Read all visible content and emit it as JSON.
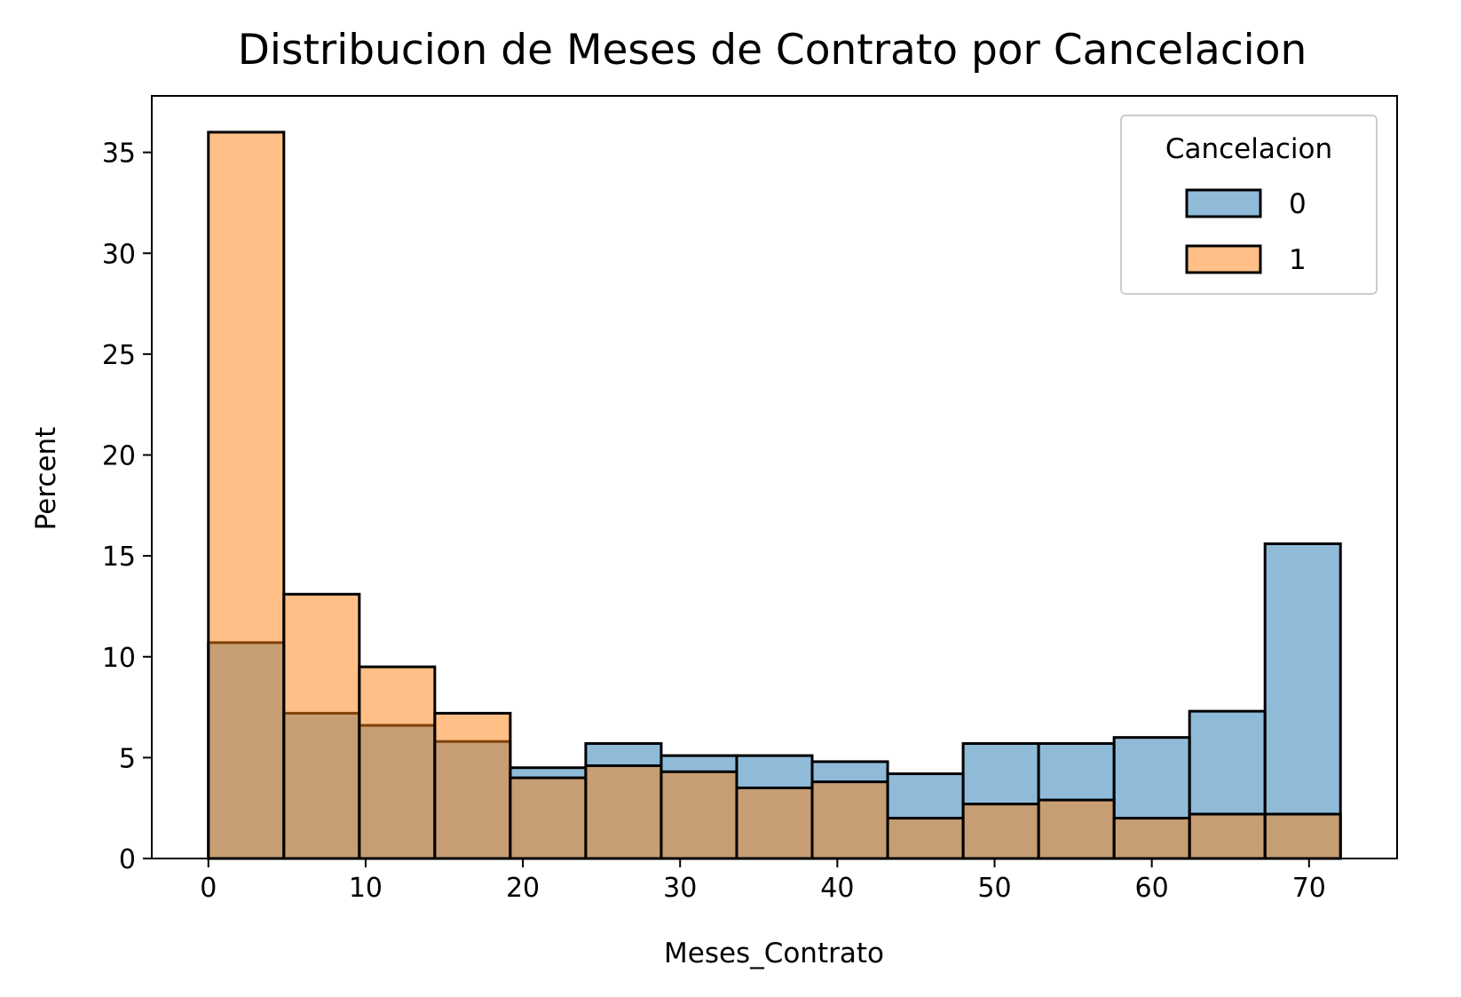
{
  "chart_data": {
    "type": "histogram",
    "title": "Distribucion de Meses de Contrato por Cancelacion",
    "xlabel": "Meses_Contrato",
    "ylabel": "Percent",
    "xlim": [
      -3.6,
      75.6
    ],
    "ylim": [
      0,
      37.8
    ],
    "xticks": [
      0,
      10,
      20,
      30,
      40,
      50,
      60,
      70
    ],
    "yticks": [
      0,
      5,
      10,
      15,
      20,
      25,
      30,
      35
    ],
    "bin_edges": [
      0,
      4.8,
      9.6,
      14.4,
      19.2,
      24.0,
      28.8,
      33.6,
      38.4,
      43.2,
      48.0,
      52.8,
      57.6,
      62.4,
      67.2,
      72.0
    ],
    "grid": false,
    "legend": {
      "title": "Cancelacion",
      "placement": "top-right"
    },
    "series": [
      {
        "name": "0",
        "color": "#1f77b4",
        "values": [
          10.7,
          7.2,
          6.6,
          5.8,
          4.5,
          5.7,
          5.1,
          5.1,
          4.8,
          4.2,
          5.7,
          5.7,
          6.0,
          7.3,
          15.6
        ]
      },
      {
        "name": "1",
        "color": "#ff7f0e",
        "values": [
          36.0,
          13.1,
          9.5,
          7.2,
          4.0,
          4.6,
          4.3,
          3.5,
          3.8,
          2.0,
          2.7,
          2.9,
          2.0,
          2.2,
          2.2
        ]
      }
    ]
  }
}
